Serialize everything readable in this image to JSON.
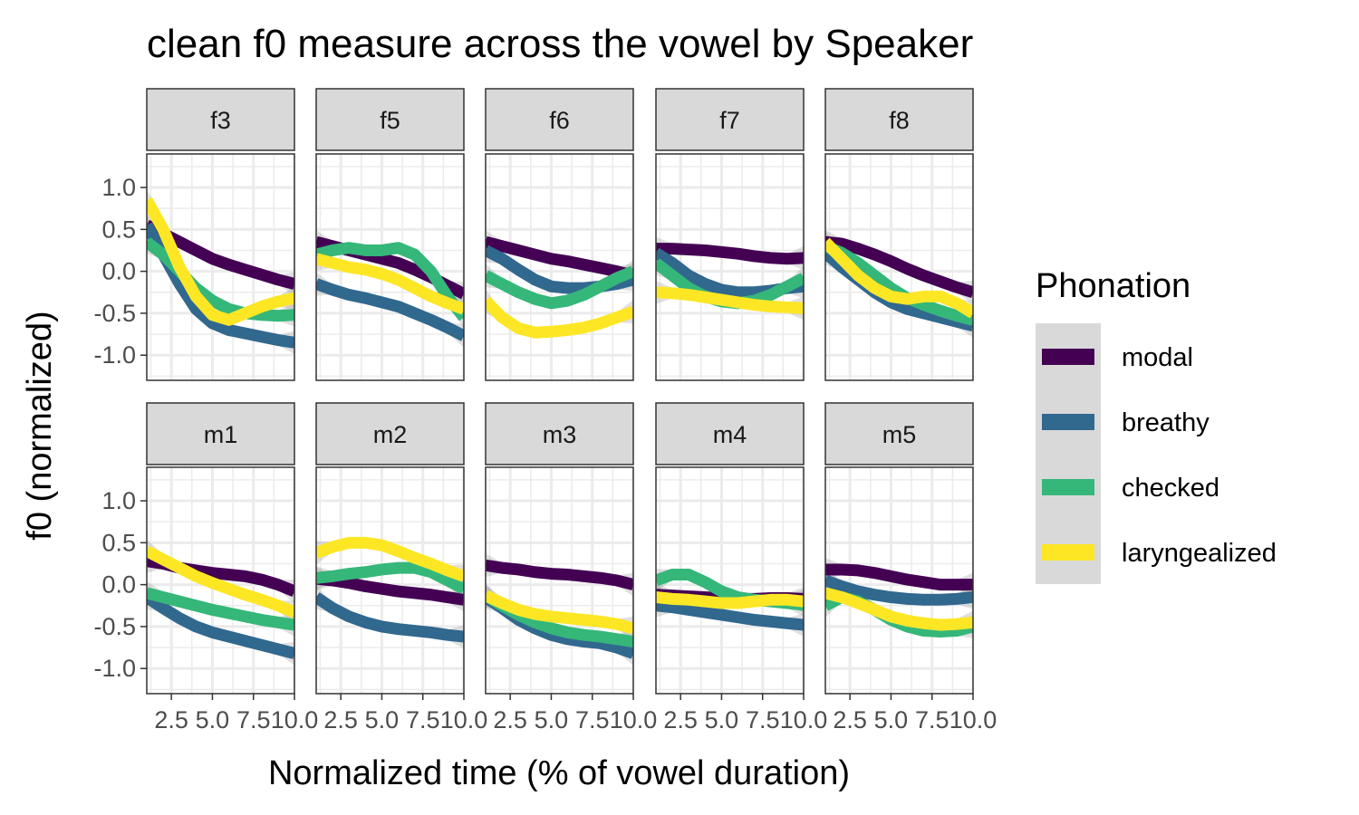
{
  "chart_data": {
    "type": "line",
    "title": "clean f0 measure across the vowel by Speaker",
    "xlabel": "Normalized time (% of vowel duration)",
    "ylabel": "f0 (normalized)",
    "xlim": [
      1,
      10
    ],
    "ylim": [
      -1.3,
      1.4
    ],
    "x_ticks": [
      2.5,
      5.0,
      7.5,
      10.0
    ],
    "x_tick_labels": [
      "2.5",
      "5.0",
      "7.5",
      "10.0"
    ],
    "y_ticks": [
      1.0,
      0.5,
      0.0,
      -0.5,
      -1.0
    ],
    "y_tick_labels": [
      "1.0",
      "0.5",
      "0.0",
      "-0.5",
      "-1.0"
    ],
    "grid": true,
    "legend": {
      "title": "Phonation",
      "position": "right",
      "entries": [
        {
          "name": "modal",
          "color": "#440154"
        },
        {
          "name": "breathy",
          "color": "#31688e"
        },
        {
          "name": "checked",
          "color": "#35b779"
        },
        {
          "name": "laryngealized",
          "color": "#fde725"
        }
      ]
    },
    "x": [
      1,
      2,
      3,
      4,
      5,
      6,
      7,
      8,
      9,
      10
    ],
    "panels": [
      {
        "label": "f3",
        "series": [
          {
            "name": "modal",
            "values": [
              0.55,
              0.45,
              0.35,
              0.25,
              0.15,
              0.08,
              0.02,
              -0.04,
              -0.1,
              -0.15
            ]
          },
          {
            "name": "breathy",
            "values": [
              0.55,
              0.2,
              -0.15,
              -0.45,
              -0.62,
              -0.7,
              -0.74,
              -0.78,
              -0.82,
              -0.85
            ]
          },
          {
            "name": "checked",
            "values": [
              0.35,
              0.2,
              0.0,
              -0.2,
              -0.35,
              -0.45,
              -0.5,
              -0.52,
              -0.53,
              -0.52
            ]
          },
          {
            "name": "laryngealized",
            "values": [
              0.85,
              0.5,
              0.05,
              -0.3,
              -0.52,
              -0.58,
              -0.5,
              -0.42,
              -0.36,
              -0.32
            ]
          }
        ]
      },
      {
        "label": "f5",
        "series": [
          {
            "name": "modal",
            "values": [
              0.35,
              0.3,
              0.25,
              0.2,
              0.15,
              0.1,
              0.02,
              -0.07,
              -0.17,
              -0.27
            ]
          },
          {
            "name": "breathy",
            "values": [
              -0.15,
              -0.22,
              -0.28,
              -0.32,
              -0.37,
              -0.42,
              -0.5,
              -0.58,
              -0.67,
              -0.77
            ]
          },
          {
            "name": "checked",
            "values": [
              0.2,
              0.25,
              0.28,
              0.25,
              0.25,
              0.28,
              0.2,
              0.0,
              -0.3,
              -0.55
            ]
          },
          {
            "name": "laryngealized",
            "values": [
              0.15,
              0.1,
              0.05,
              0.02,
              -0.03,
              -0.1,
              -0.2,
              -0.3,
              -0.38,
              -0.45
            ]
          }
        ]
      },
      {
        "label": "f6",
        "series": [
          {
            "name": "modal",
            "values": [
              0.35,
              0.3,
              0.25,
              0.2,
              0.15,
              0.12,
              0.08,
              0.04,
              0.0,
              -0.05
            ]
          },
          {
            "name": "breathy",
            "values": [
              0.25,
              0.15,
              0.02,
              -0.1,
              -0.18,
              -0.2,
              -0.2,
              -0.18,
              -0.15,
              -0.1
            ]
          },
          {
            "name": "checked",
            "values": [
              -0.05,
              -0.15,
              -0.25,
              -0.33,
              -0.38,
              -0.35,
              -0.28,
              -0.18,
              -0.08,
              0.0
            ]
          },
          {
            "name": "laryngealized",
            "values": [
              -0.35,
              -0.55,
              -0.68,
              -0.73,
              -0.72,
              -0.7,
              -0.67,
              -0.62,
              -0.55,
              -0.48
            ]
          }
        ]
      },
      {
        "label": "f7",
        "series": [
          {
            "name": "modal",
            "values": [
              0.27,
              0.27,
              0.26,
              0.25,
              0.23,
              0.21,
              0.18,
              0.16,
              0.15,
              0.16
            ]
          },
          {
            "name": "breathy",
            "values": [
              0.22,
              0.1,
              -0.05,
              -0.15,
              -0.22,
              -0.25,
              -0.25,
              -0.23,
              -0.2,
              -0.18
            ]
          },
          {
            "name": "checked",
            "values": [
              0.1,
              -0.05,
              -0.2,
              -0.3,
              -0.36,
              -0.38,
              -0.35,
              -0.28,
              -0.18,
              -0.08
            ]
          },
          {
            "name": "laryngealized",
            "values": [
              -0.25,
              -0.26,
              -0.28,
              -0.31,
              -0.34,
              -0.37,
              -0.4,
              -0.42,
              -0.43,
              -0.44
            ]
          }
        ]
      },
      {
        "label": "f8",
        "series": [
          {
            "name": "modal",
            "values": [
              0.35,
              0.33,
              0.27,
              0.2,
              0.12,
              0.03,
              -0.05,
              -0.12,
              -0.19,
              -0.25
            ]
          },
          {
            "name": "breathy",
            "values": [
              0.22,
              0.05,
              -0.1,
              -0.25,
              -0.37,
              -0.45,
              -0.5,
              -0.55,
              -0.6,
              -0.65
            ]
          },
          {
            "name": "checked",
            "values": [
              0.3,
              0.22,
              0.1,
              -0.05,
              -0.2,
              -0.32,
              -0.4,
              -0.47,
              -0.53,
              -0.58
            ]
          },
          {
            "name": "laryngealized",
            "values": [
              0.35,
              0.15,
              -0.05,
              -0.2,
              -0.3,
              -0.33,
              -0.3,
              -0.3,
              -0.38,
              -0.5
            ]
          }
        ]
      },
      {
        "label": "m1",
        "series": [
          {
            "name": "modal",
            "values": [
              0.28,
              0.25,
              0.2,
              0.17,
              0.14,
              0.12,
              0.1,
              0.06,
              0.0,
              -0.08
            ]
          },
          {
            "name": "breathy",
            "values": [
              -0.15,
              -0.28,
              -0.4,
              -0.5,
              -0.57,
              -0.62,
              -0.67,
              -0.72,
              -0.77,
              -0.82
            ]
          },
          {
            "name": "checked",
            "values": [
              -0.1,
              -0.15,
              -0.2,
              -0.25,
              -0.3,
              -0.34,
              -0.38,
              -0.42,
              -0.45,
              -0.48
            ]
          },
          {
            "name": "laryngealized",
            "values": [
              0.4,
              0.3,
              0.2,
              0.1,
              0.02,
              -0.05,
              -0.12,
              -0.18,
              -0.25,
              -0.33
            ]
          }
        ]
      },
      {
        "label": "m2",
        "series": [
          {
            "name": "modal",
            "values": [
              0.07,
              0.05,
              0.02,
              -0.02,
              -0.05,
              -0.08,
              -0.1,
              -0.12,
              -0.15,
              -0.18
            ]
          },
          {
            "name": "breathy",
            "values": [
              -0.15,
              -0.28,
              -0.38,
              -0.45,
              -0.5,
              -0.53,
              -0.55,
              -0.57,
              -0.6,
              -0.62
            ]
          },
          {
            "name": "checked",
            "values": [
              0.08,
              0.1,
              0.13,
              0.15,
              0.18,
              0.2,
              0.2,
              0.15,
              0.05,
              -0.05
            ]
          },
          {
            "name": "laryngealized",
            "values": [
              0.38,
              0.45,
              0.5,
              0.5,
              0.47,
              0.4,
              0.32,
              0.25,
              0.17,
              0.1
            ]
          }
        ]
      },
      {
        "label": "m3",
        "series": [
          {
            "name": "modal",
            "values": [
              0.23,
              0.2,
              0.18,
              0.15,
              0.13,
              0.12,
              0.1,
              0.08,
              0.05,
              0.0
            ]
          },
          {
            "name": "breathy",
            "values": [
              -0.15,
              -0.28,
              -0.42,
              -0.52,
              -0.6,
              -0.65,
              -0.68,
              -0.7,
              -0.75,
              -0.82
            ]
          },
          {
            "name": "checked",
            "values": [
              -0.13,
              -0.25,
              -0.36,
              -0.45,
              -0.52,
              -0.57,
              -0.6,
              -0.62,
              -0.65,
              -0.68
            ]
          },
          {
            "name": "laryngealized",
            "values": [
              -0.13,
              -0.22,
              -0.3,
              -0.35,
              -0.38,
              -0.4,
              -0.42,
              -0.44,
              -0.47,
              -0.52
            ]
          }
        ]
      },
      {
        "label": "m4",
        "series": [
          {
            "name": "modal",
            "values": [
              -0.12,
              -0.13,
              -0.14,
              -0.15,
              -0.16,
              -0.17,
              -0.17,
              -0.16,
              -0.16,
              -0.17
            ]
          },
          {
            "name": "breathy",
            "values": [
              -0.25,
              -0.27,
              -0.3,
              -0.33,
              -0.36,
              -0.39,
              -0.42,
              -0.44,
              -0.46,
              -0.48
            ]
          },
          {
            "name": "checked",
            "values": [
              0.05,
              0.12,
              0.12,
              0.03,
              -0.08,
              -0.15,
              -0.18,
              -0.2,
              -0.22,
              -0.24
            ]
          },
          {
            "name": "laryngealized",
            "values": [
              -0.15,
              -0.17,
              -0.18,
              -0.2,
              -0.22,
              -0.22,
              -0.2,
              -0.18,
              -0.18,
              -0.2
            ]
          }
        ]
      },
      {
        "label": "m5",
        "series": [
          {
            "name": "modal",
            "values": [
              0.18,
              0.18,
              0.17,
              0.14,
              0.1,
              0.06,
              0.03,
              0.0,
              0.0,
              0.0
            ]
          },
          {
            "name": "breathy",
            "values": [
              0.05,
              -0.02,
              -0.08,
              -0.12,
              -0.15,
              -0.17,
              -0.18,
              -0.18,
              -0.17,
              -0.15
            ]
          },
          {
            "name": "checked",
            "values": [
              -0.25,
              -0.15,
              -0.2,
              -0.3,
              -0.42,
              -0.5,
              -0.55,
              -0.56,
              -0.55,
              -0.5
            ]
          },
          {
            "name": "laryngealized",
            "values": [
              -0.1,
              -0.15,
              -0.22,
              -0.3,
              -0.38,
              -0.43,
              -0.46,
              -0.48,
              -0.47,
              -0.45
            ]
          }
        ]
      }
    ]
  }
}
